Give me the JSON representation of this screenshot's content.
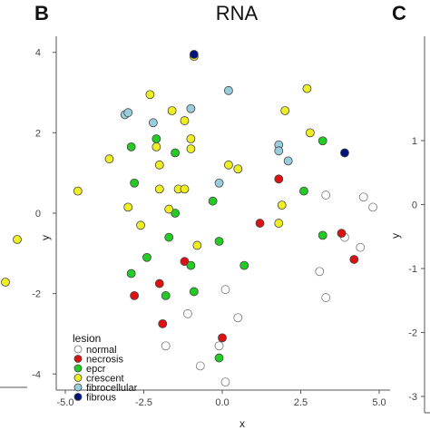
{
  "panels": {
    "left_letter": "B",
    "right_letter": "C",
    "left_neighbor_y_ticks": [
      "1",
      "0",
      "-1",
      "-2",
      "-3"
    ],
    "left_neighbor_ylabel": "y"
  },
  "chart_data": {
    "type": "scatter",
    "title": "RNA",
    "xlabel": "x",
    "ylabel": "y",
    "xlim": [
      -5.0,
      5.0
    ],
    "ylim": [
      -4.4,
      4.4
    ],
    "x_ticks": [
      -5.0,
      -2.5,
      0.0,
      2.5,
      5.0
    ],
    "x_tick_labels": [
      "-5.0",
      "-2.5",
      "0.0",
      "2.5",
      "5.0"
    ],
    "y_ticks": [
      -4,
      -2,
      0,
      2,
      4
    ],
    "y_tick_labels": [
      "-4",
      "-2",
      "0",
      "2",
      "4"
    ],
    "grid": false,
    "legend": {
      "title": "lesion",
      "position": "bottom-left"
    },
    "series": [
      {
        "name": "normal",
        "color": "#ffffff",
        "points": [
          [
            3.3,
            0.45
          ],
          [
            4.5,
            0.4
          ],
          [
            4.8,
            0.15
          ],
          [
            3.9,
            -0.6
          ],
          [
            4.4,
            -0.85
          ],
          [
            3.1,
            -1.45
          ],
          [
            3.3,
            -2.1
          ],
          [
            0.1,
            -1.9
          ],
          [
            0.5,
            -2.6
          ],
          [
            -1.1,
            -2.5
          ],
          [
            -1.8,
            -3.3
          ],
          [
            -0.1,
            -3.3
          ],
          [
            -0.7,
            -3.8
          ],
          [
            0.1,
            -4.2
          ]
        ]
      },
      {
        "name": "necrosis",
        "color": "#dd1111",
        "points": [
          [
            1.8,
            0.85
          ],
          [
            1.2,
            -0.25
          ],
          [
            3.8,
            -0.5
          ],
          [
            4.2,
            -1.15
          ],
          [
            -1.2,
            -1.2
          ],
          [
            -2.0,
            -1.75
          ],
          [
            -2.8,
            -2.05
          ],
          [
            -1.9,
            -2.75
          ],
          [
            0.0,
            -3.1
          ]
        ]
      },
      {
        "name": "epcr",
        "color": "#22cc22",
        "points": [
          [
            -2.9,
            1.65
          ],
          [
            -2.1,
            1.85
          ],
          [
            -1.5,
            1.5
          ],
          [
            3.2,
            1.8
          ],
          [
            -2.8,
            0.75
          ],
          [
            2.6,
            0.55
          ],
          [
            -0.3,
            0.3
          ],
          [
            -1.5,
            0.0
          ],
          [
            -1.7,
            -0.6
          ],
          [
            -0.1,
            -0.7
          ],
          [
            -2.4,
            -1.1
          ],
          [
            -2.9,
            -1.5
          ],
          [
            -1.0,
            -1.3
          ],
          [
            0.7,
            -1.3
          ],
          [
            -1.8,
            -2.05
          ],
          [
            -0.9,
            -1.95
          ],
          [
            3.2,
            -0.55
          ],
          [
            -0.1,
            -3.6
          ]
        ]
      },
      {
        "name": "crescent",
        "color": "#eeee22",
        "points": [
          [
            -2.3,
            2.95
          ],
          [
            -1.6,
            2.55
          ],
          [
            -1.2,
            2.3
          ],
          [
            2.7,
            3.1
          ],
          [
            2.0,
            2.55
          ],
          [
            2.8,
            2.0
          ],
          [
            -2.1,
            1.65
          ],
          [
            -1.0,
            1.85
          ],
          [
            -1.0,
            1.6
          ],
          [
            -3.6,
            1.35
          ],
          [
            0.2,
            1.2
          ],
          [
            0.5,
            1.1
          ],
          [
            -2.0,
            1.2
          ],
          [
            -2.0,
            0.6
          ],
          [
            -1.4,
            0.6
          ],
          [
            -1.2,
            0.6
          ],
          [
            -4.6,
            0.55
          ],
          [
            -3.0,
            0.15
          ],
          [
            -2.6,
            -0.3
          ],
          [
            -1.7,
            0.1
          ],
          [
            1.9,
            0.2
          ],
          [
            -0.8,
            -0.8
          ],
          [
            1.8,
            -0.25
          ],
          [
            -0.9,
            3.9
          ]
        ]
      },
      {
        "name": "fibrocellular",
        "color": "#99ccdd",
        "points": [
          [
            0.2,
            3.05
          ],
          [
            -3.1,
            2.45
          ],
          [
            -3.0,
            2.5
          ],
          [
            -2.2,
            2.25
          ],
          [
            -1.0,
            2.6
          ],
          [
            1.8,
            1.7
          ],
          [
            1.8,
            1.55
          ],
          [
            2.1,
            1.3
          ],
          [
            -0.1,
            0.75
          ]
        ]
      },
      {
        "name": "fibrous",
        "color": "#00157a",
        "points": [
          [
            -0.9,
            3.95
          ],
          [
            3.9,
            1.5
          ]
        ]
      }
    ]
  }
}
